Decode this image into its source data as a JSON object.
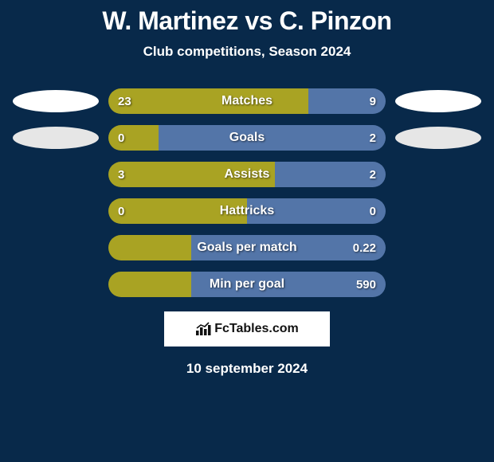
{
  "title": "W. Martinez vs C. Pinzon",
  "subtitle": "Club competitions, Season 2024",
  "date": "10 september 2024",
  "badge_text": "FcTables.com",
  "colors": {
    "background": "#08294a",
    "left": "#a9a323",
    "right": "#5375a8",
    "left_ellipse_light": "#ffffff",
    "left_ellipse_dark": "#e6e6e6",
    "right_ellipse_light": "#ffffff",
    "right_ellipse_dark": "#e6e6e6"
  },
  "stats": [
    {
      "label": "Matches",
      "left_val": "23",
      "right_val": "9",
      "left_pct": 72,
      "right_pct": 28,
      "show_left_ellipse": true,
      "show_right_ellipse": true,
      "left_ellipse_key": "left_ellipse_light",
      "right_ellipse_key": "right_ellipse_light"
    },
    {
      "label": "Goals",
      "left_val": "0",
      "right_val": "2",
      "left_pct": 18,
      "right_pct": 82,
      "show_left_ellipse": true,
      "show_right_ellipse": true,
      "left_ellipse_key": "left_ellipse_dark",
      "right_ellipse_key": "right_ellipse_dark"
    },
    {
      "label": "Assists",
      "left_val": "3",
      "right_val": "2",
      "left_pct": 60,
      "right_pct": 40,
      "show_left_ellipse": false,
      "show_right_ellipse": false
    },
    {
      "label": "Hattricks",
      "left_val": "0",
      "right_val": "0",
      "left_pct": 50,
      "right_pct": 50,
      "show_left_ellipse": false,
      "show_right_ellipse": false
    },
    {
      "label": "Goals per match",
      "left_val": "",
      "right_val": "0.22",
      "left_pct": 30,
      "right_pct": 70,
      "show_left_ellipse": false,
      "show_right_ellipse": false
    },
    {
      "label": "Min per goal",
      "left_val": "",
      "right_val": "590",
      "left_pct": 30,
      "right_pct": 70,
      "show_left_ellipse": false,
      "show_right_ellipse": false
    }
  ]
}
